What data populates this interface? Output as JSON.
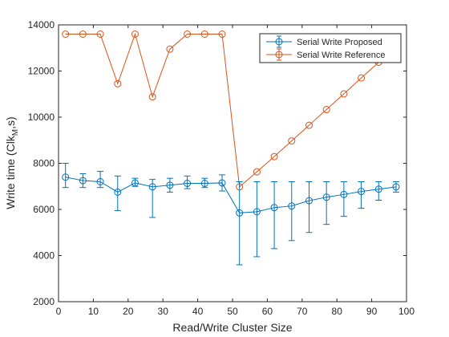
{
  "chart_data": {
    "type": "line",
    "title": "",
    "xlabel": "Read/Write Cluster Size",
    "ylabel_main": "Write time (Clk",
    "ylabel_sub": "M",
    "ylabel_end": ",s)",
    "xlim": [
      0,
      100
    ],
    "ylim": [
      2000,
      14000
    ],
    "xticks": [
      0,
      10,
      20,
      30,
      40,
      50,
      60,
      70,
      80,
      90,
      100
    ],
    "yticks": [
      2000,
      4000,
      6000,
      8000,
      10000,
      12000,
      14000
    ],
    "grid": false,
    "legend_position": "top-right",
    "x": [
      2,
      7,
      12,
      17,
      22,
      27,
      32,
      37,
      42,
      47,
      52,
      57,
      62,
      67,
      72,
      77,
      82,
      87,
      92,
      97
    ],
    "series": [
      {
        "name": "Serial Write Proposed",
        "color": "#0072BD",
        "values": [
          7400,
          7250,
          7200,
          6750,
          7150,
          6980,
          7050,
          7130,
          7130,
          7150,
          5850,
          5900,
          6080,
          6150,
          6380,
          6530,
          6650,
          6780,
          6880,
          6980
        ],
        "err_low": [
          6950,
          6950,
          6950,
          5950,
          7000,
          5650,
          6750,
          6900,
          6950,
          6800,
          3600,
          3950,
          4300,
          4650,
          5000,
          5350,
          5700,
          6050,
          6400,
          6750
        ],
        "err_high": [
          8000,
          7550,
          7650,
          7450,
          7350,
          7300,
          7350,
          7450,
          7350,
          7500,
          7200,
          7200,
          7200,
          7200,
          7200,
          7200,
          7200,
          7200,
          7200,
          7200
        ]
      },
      {
        "name": "Serial Write Reference",
        "color": "#D95319",
        "values": [
          13600,
          13600,
          13600,
          11450,
          13600,
          10880,
          12950,
          13600,
          13600,
          13600,
          6980,
          7630,
          8290,
          8970,
          9650,
          10330,
          11010,
          11700,
          12380,
          13070
        ],
        "err_low": [
          13600,
          13600,
          13600,
          11450,
          13600,
          10880,
          12950,
          13600,
          13600,
          13600,
          6980,
          7630,
          8290,
          8970,
          9650,
          10330,
          11010,
          11700,
          12380,
          13070
        ],
        "err_high": [
          13600,
          13600,
          13600,
          11450,
          13600,
          10880,
          12950,
          13600,
          13600,
          13600,
          6980,
          7630,
          8290,
          8970,
          9650,
          10330,
          11010,
          11700,
          12380,
          13070
        ]
      }
    ]
  }
}
